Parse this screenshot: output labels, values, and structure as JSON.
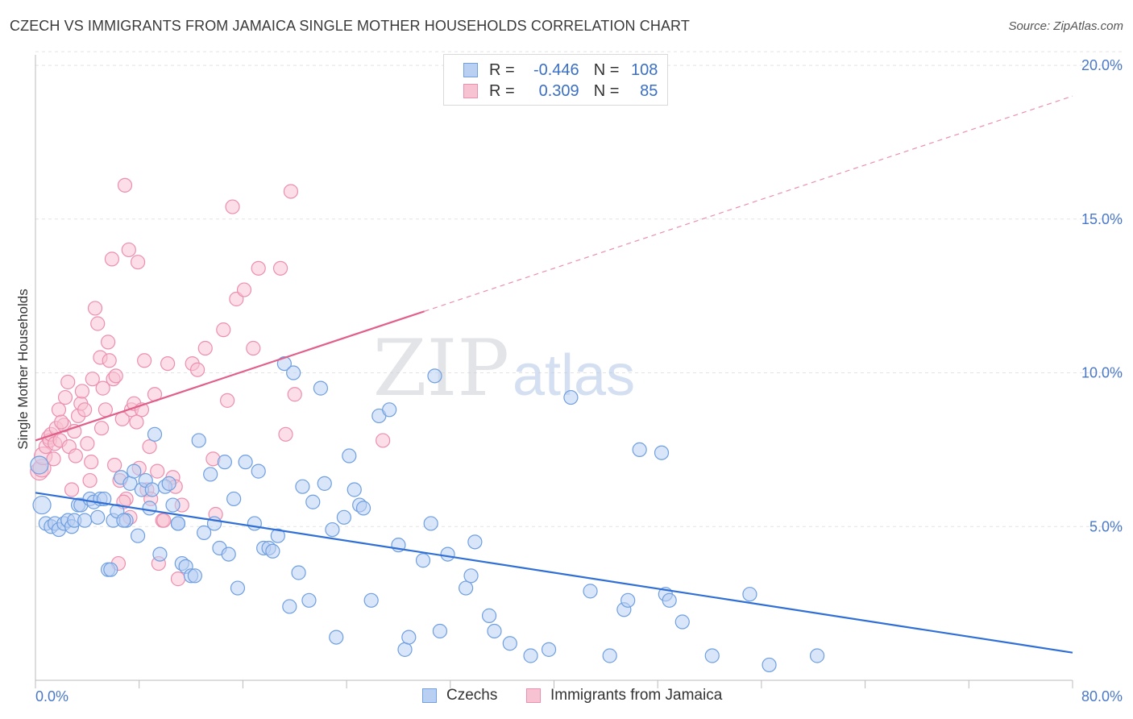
{
  "title": "CZECH VS IMMIGRANTS FROM JAMAICA SINGLE MOTHER HOUSEHOLDS CORRELATION CHART",
  "source": "Source: ZipAtlas.com",
  "watermark": {
    "zip": "ZIP",
    "atlas": "atlas"
  },
  "legend": {
    "rows": [
      {
        "r_label": "R =",
        "r_value": "-0.446",
        "n_label": "N =",
        "n_value": "108"
      },
      {
        "r_label": "R =",
        "r_value": "0.309",
        "n_label": "N =",
        "n_value": "85"
      }
    ]
  },
  "colors": {
    "blue": "#6f9fe0",
    "blue_fill": "#b9d0f2",
    "blue_line": "#2f6fd6",
    "pink": "#ec8fae",
    "pink_fill": "#f7c3d3",
    "pink_line": "#e0608a",
    "tick_text": "#4a78c8",
    "grid": "#e3e3e3"
  },
  "chart_data": {
    "type": "scatter",
    "title": "CZECH VS IMMIGRANTS FROM JAMAICA SINGLE MOTHER HOUSEHOLDS CORRELATION CHART",
    "xlabel": "",
    "ylabel": "Single Mother Households",
    "xlim": [
      0,
      80
    ],
    "ylim": [
      0,
      20.5
    ],
    "x_tick_labels": [
      "0.0%",
      "80.0%"
    ],
    "y_ticks": [
      5,
      10,
      15,
      20
    ],
    "y_tick_labels": [
      "5.0%",
      "10.0%",
      "15.0%",
      "20.0%"
    ],
    "grid": true,
    "legend_position": "top-center",
    "series": [
      {
        "name": "Czechs",
        "color": "#6f9fe0",
        "r": -0.446,
        "n": 108,
        "trend": {
          "x": [
            0,
            80
          ],
          "y": [
            6.1,
            0.9
          ],
          "style": "solid"
        },
        "points": [
          [
            0.3,
            7.0
          ],
          [
            0.5,
            5.7
          ],
          [
            0.8,
            5.1
          ],
          [
            1.2,
            5.0
          ],
          [
            1.5,
            5.1
          ],
          [
            1.8,
            4.9
          ],
          [
            2.2,
            5.1
          ],
          [
            2.5,
            5.2
          ],
          [
            2.8,
            5.0
          ],
          [
            3.0,
            5.2
          ],
          [
            3.3,
            5.7
          ],
          [
            3.5,
            5.7
          ],
          [
            3.8,
            5.2
          ],
          [
            4.2,
            5.9
          ],
          [
            4.5,
            5.8
          ],
          [
            4.8,
            5.3
          ],
          [
            5.0,
            5.9
          ],
          [
            5.3,
            5.9
          ],
          [
            5.6,
            3.6
          ],
          [
            6.0,
            5.2
          ],
          [
            6.3,
            5.5
          ],
          [
            6.6,
            6.6
          ],
          [
            7.0,
            5.2
          ],
          [
            7.3,
            6.4
          ],
          [
            7.6,
            6.8
          ],
          [
            7.9,
            4.7
          ],
          [
            8.2,
            6.2
          ],
          [
            8.5,
            6.5
          ],
          [
            8.8,
            5.6
          ],
          [
            9.0,
            6.2
          ],
          [
            9.2,
            8.0
          ],
          [
            9.6,
            4.1
          ],
          [
            10.0,
            6.3
          ],
          [
            10.3,
            6.4
          ],
          [
            10.6,
            5.7
          ],
          [
            11.0,
            5.1
          ],
          [
            11.3,
            3.8
          ],
          [
            11.6,
            3.7
          ],
          [
            12.0,
            3.4
          ],
          [
            12.3,
            3.4
          ],
          [
            12.6,
            7.8
          ],
          [
            13.0,
            4.8
          ],
          [
            13.5,
            6.7
          ],
          [
            13.8,
            5.1
          ],
          [
            14.2,
            4.3
          ],
          [
            14.6,
            7.1
          ],
          [
            14.9,
            4.1
          ],
          [
            15.3,
            5.9
          ],
          [
            15.6,
            3.0
          ],
          [
            16.2,
            7.1
          ],
          [
            16.9,
            5.1
          ],
          [
            17.2,
            6.8
          ],
          [
            17.6,
            4.3
          ],
          [
            18.0,
            4.3
          ],
          [
            18.3,
            4.2
          ],
          [
            18.7,
            4.7
          ],
          [
            19.2,
            10.3
          ],
          [
            19.6,
            2.4
          ],
          [
            19.9,
            10.0
          ],
          [
            20.3,
            3.5
          ],
          [
            20.6,
            6.3
          ],
          [
            21.1,
            2.6
          ],
          [
            21.4,
            5.8
          ],
          [
            22.0,
            9.5
          ],
          [
            22.3,
            6.4
          ],
          [
            22.9,
            4.9
          ],
          [
            23.2,
            1.4
          ],
          [
            23.8,
            5.3
          ],
          [
            24.2,
            7.3
          ],
          [
            24.6,
            6.2
          ],
          [
            25.0,
            5.7
          ],
          [
            25.3,
            5.6
          ],
          [
            25.9,
            2.6
          ],
          [
            26.5,
            8.6
          ],
          [
            27.3,
            8.8
          ],
          [
            28.0,
            4.4
          ],
          [
            28.5,
            1.0
          ],
          [
            28.8,
            1.4
          ],
          [
            29.9,
            3.9
          ],
          [
            30.5,
            5.1
          ],
          [
            30.8,
            9.9
          ],
          [
            31.2,
            1.6
          ],
          [
            31.8,
            4.1
          ],
          [
            33.2,
            3.0
          ],
          [
            33.6,
            3.4
          ],
          [
            33.9,
            4.5
          ],
          [
            35.0,
            2.1
          ],
          [
            35.4,
            1.6
          ],
          [
            36.6,
            1.2
          ],
          [
            38.2,
            0.8
          ],
          [
            39.6,
            1.0
          ],
          [
            41.3,
            9.2
          ],
          [
            42.8,
            2.9
          ],
          [
            44.3,
            0.8
          ],
          [
            45.4,
            2.3
          ],
          [
            45.7,
            2.6
          ],
          [
            46.6,
            7.5
          ],
          [
            48.3,
            7.4
          ],
          [
            48.6,
            2.8
          ],
          [
            48.9,
            2.6
          ],
          [
            49.9,
            1.9
          ],
          [
            52.2,
            0.8
          ],
          [
            55.1,
            2.8
          ],
          [
            56.6,
            0.5
          ],
          [
            60.3,
            0.8
          ],
          [
            5.8,
            3.6
          ],
          [
            6.8,
            5.2
          ],
          [
            11.0,
            5.1
          ]
        ]
      },
      {
        "name": "Immigrants from Jamaica",
        "color": "#ec8fae",
        "r": 0.309,
        "n": 85,
        "trend": {
          "x": [
            0,
            30
          ],
          "y": [
            7.8,
            12.0
          ],
          "style": "solid",
          "dashed_extension": {
            "x": [
              30,
              80
            ],
            "y": [
              12.0,
              19.0
            ]
          }
        },
        "points": [
          [
            0.3,
            6.8
          ],
          [
            0.5,
            6.9
          ],
          [
            0.6,
            7.3
          ],
          [
            0.8,
            7.6
          ],
          [
            1.0,
            7.9
          ],
          [
            1.1,
            7.8
          ],
          [
            1.2,
            8.0
          ],
          [
            1.5,
            7.7
          ],
          [
            1.6,
            8.2
          ],
          [
            1.8,
            8.8
          ],
          [
            1.9,
            7.8
          ],
          [
            2.2,
            8.3
          ],
          [
            2.5,
            9.7
          ],
          [
            2.6,
            7.6
          ],
          [
            2.8,
            6.2
          ],
          [
            3.1,
            7.3
          ],
          [
            3.3,
            8.6
          ],
          [
            3.5,
            9.0
          ],
          [
            3.8,
            8.8
          ],
          [
            4.0,
            7.7
          ],
          [
            4.2,
            6.5
          ],
          [
            4.4,
            9.8
          ],
          [
            4.6,
            12.1
          ],
          [
            4.8,
            11.6
          ],
          [
            5.0,
            10.5
          ],
          [
            5.2,
            9.5
          ],
          [
            5.4,
            8.8
          ],
          [
            5.6,
            11.0
          ],
          [
            5.7,
            10.4
          ],
          [
            5.9,
            13.7
          ],
          [
            6.0,
            9.8
          ],
          [
            6.2,
            9.9
          ],
          [
            6.4,
            3.8
          ],
          [
            6.5,
            6.5
          ],
          [
            6.7,
            8.5
          ],
          [
            6.9,
            16.1
          ],
          [
            7.0,
            5.9
          ],
          [
            7.2,
            14.0
          ],
          [
            7.4,
            8.8
          ],
          [
            7.6,
            9.0
          ],
          [
            7.9,
            13.6
          ],
          [
            8.2,
            8.8
          ],
          [
            8.4,
            10.4
          ],
          [
            8.6,
            6.2
          ],
          [
            8.8,
            7.6
          ],
          [
            9.2,
            9.3
          ],
          [
            9.5,
            3.8
          ],
          [
            9.8,
            5.2
          ],
          [
            10.2,
            10.3
          ],
          [
            10.6,
            6.6
          ],
          [
            11.3,
            5.7
          ],
          [
            12.1,
            10.3
          ],
          [
            12.5,
            10.1
          ],
          [
            13.1,
            10.8
          ],
          [
            13.7,
            7.2
          ],
          [
            14.5,
            11.4
          ],
          [
            14.8,
            9.1
          ],
          [
            15.2,
            15.4
          ],
          [
            15.5,
            12.4
          ],
          [
            16.1,
            12.7
          ],
          [
            16.8,
            10.8
          ],
          [
            17.2,
            13.4
          ],
          [
            18.9,
            13.4
          ],
          [
            19.3,
            8.0
          ],
          [
            19.7,
            15.9
          ],
          [
            20.0,
            9.3
          ],
          [
            26.8,
            7.8
          ],
          [
            1.4,
            7.2
          ],
          [
            2.0,
            8.4
          ],
          [
            2.3,
            9.2
          ],
          [
            3.0,
            8.1
          ],
          [
            3.6,
            9.4
          ],
          [
            4.3,
            7.1
          ],
          [
            5.1,
            8.2
          ],
          [
            6.1,
            7.0
          ],
          [
            6.8,
            5.8
          ],
          [
            7.3,
            5.3
          ],
          [
            7.8,
            8.4
          ],
          [
            8.0,
            6.9
          ],
          [
            8.9,
            5.9
          ],
          [
            9.4,
            6.8
          ],
          [
            9.9,
            5.2
          ],
          [
            10.8,
            6.3
          ],
          [
            13.9,
            5.4
          ],
          [
            11.0,
            3.3
          ]
        ]
      }
    ]
  },
  "bottom_legend": [
    {
      "label": "Czechs"
    },
    {
      "label": "Immigrants from Jamaica"
    }
  ]
}
